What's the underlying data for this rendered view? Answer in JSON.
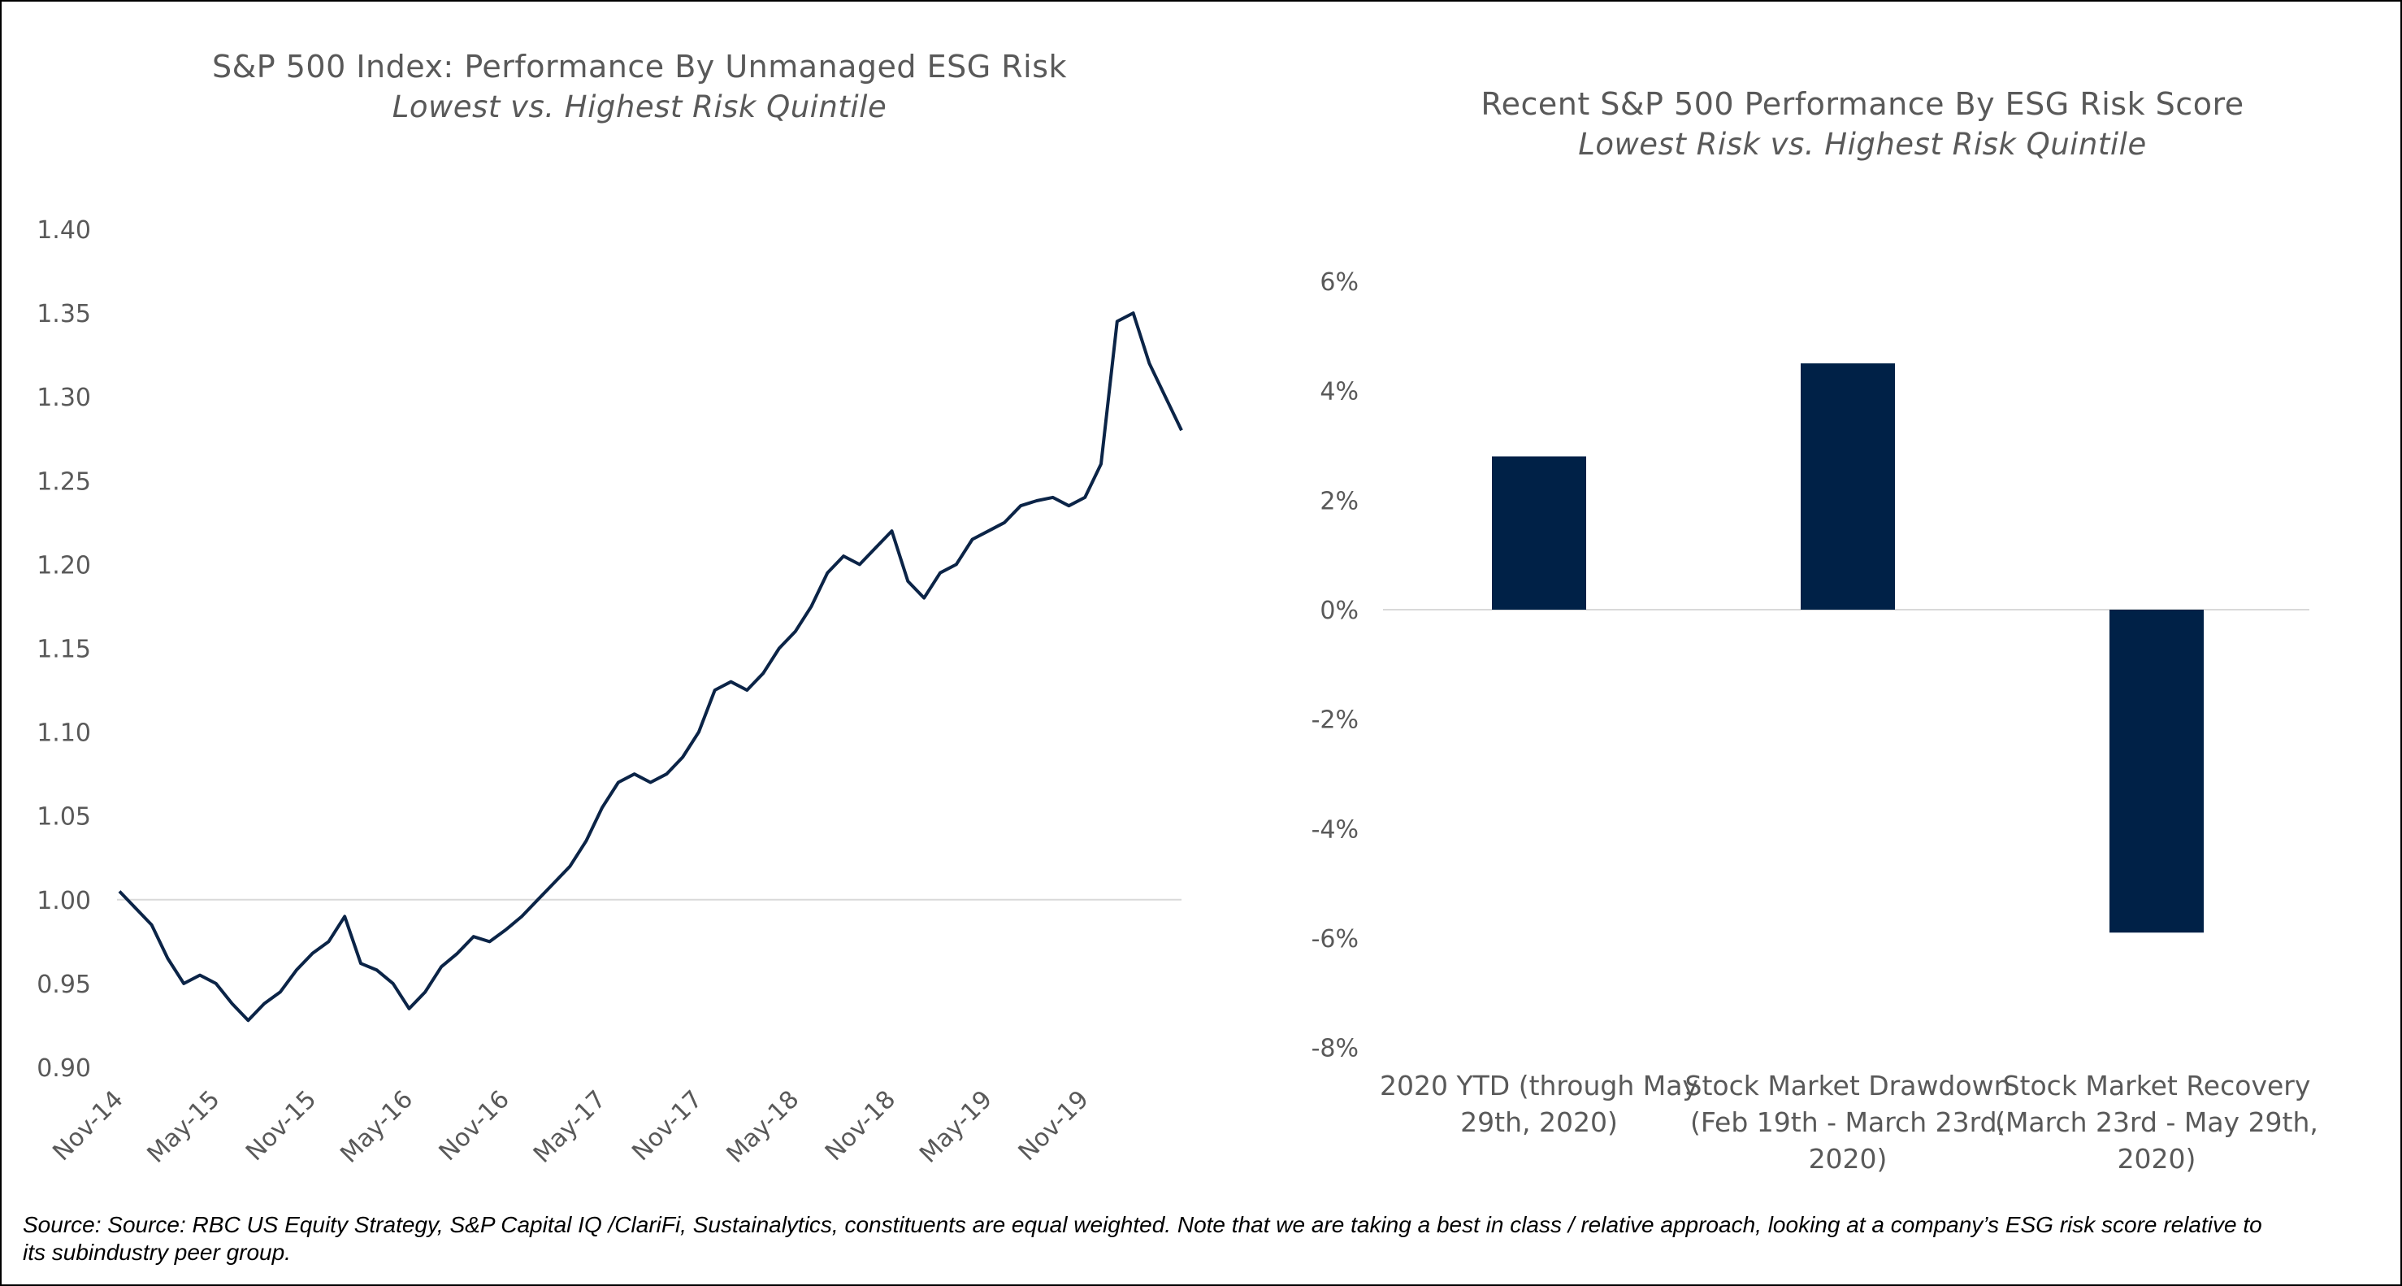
{
  "chart_data": [
    {
      "type": "line",
      "title": "S&P 500 Index:  Performance  By Unmanaged  ESG Risk",
      "subtitle": "Lowest vs. Highest Risk Quintile",
      "xlabel": "",
      "ylabel": "",
      "ylim": [
        0.9,
        1.4
      ],
      "yticks": [
        "0.90",
        "0.95",
        "1.00",
        "1.05",
        "1.10",
        "1.15",
        "1.20",
        "1.25",
        "1.30",
        "1.35",
        "1.40"
      ],
      "xticks": [
        "Nov-14",
        "May-15",
        "Nov-15",
        "May-16",
        "Nov-16",
        "May-17",
        "Nov-17",
        "May-18",
        "Nov-18",
        "May-19",
        "Nov-19"
      ],
      "reference_line": 1.0,
      "grid": false,
      "legend": "none",
      "color": "#0b2447",
      "series": [
        {
          "x": [
            "Nov-14",
            "Dec-14",
            "Jan-15",
            "Feb-15",
            "Mar-15",
            "Apr-15",
            "May-15",
            "Jun-15",
            "Jul-15",
            "Aug-15",
            "Sep-15",
            "Oct-15",
            "Nov-15",
            "Dec-15",
            "Jan-16",
            "Feb-16",
            "Mar-16",
            "Apr-16",
            "May-16",
            "Jun-16",
            "Jul-16",
            "Aug-16",
            "Sep-16",
            "Oct-16",
            "Nov-16",
            "Dec-16",
            "Jan-17",
            "Feb-17",
            "Mar-17",
            "Apr-17",
            "May-17",
            "Jun-17",
            "Jul-17",
            "Aug-17",
            "Sep-17",
            "Oct-17",
            "Nov-17",
            "Dec-17",
            "Jan-18",
            "Feb-18",
            "Mar-18",
            "Apr-18",
            "May-18",
            "Jun-18",
            "Jul-18",
            "Aug-18",
            "Sep-18",
            "Oct-18",
            "Nov-18",
            "Dec-18",
            "Jan-19",
            "Feb-19",
            "Mar-19",
            "Apr-19",
            "May-19",
            "Jun-19",
            "Jul-19",
            "Aug-19",
            "Sep-19",
            "Oct-19",
            "Nov-19",
            "Dec-19",
            "Jan-20",
            "Feb-20",
            "Mar-20",
            "Apr-20",
            "May-20"
          ],
          "values": [
            1.005,
            0.995,
            0.985,
            0.965,
            0.95,
            0.955,
            0.95,
            0.938,
            0.928,
            0.938,
            0.945,
            0.958,
            0.968,
            0.975,
            0.99,
            0.962,
            0.958,
            0.95,
            0.935,
            0.945,
            0.96,
            0.968,
            0.978,
            0.975,
            0.982,
            0.99,
            1.0,
            1.01,
            1.02,
            1.035,
            1.055,
            1.07,
            1.075,
            1.07,
            1.075,
            1.085,
            1.1,
            1.125,
            1.13,
            1.125,
            1.135,
            1.15,
            1.16,
            1.175,
            1.195,
            1.205,
            1.2,
            1.21,
            1.22,
            1.19,
            1.18,
            1.195,
            1.2,
            1.215,
            1.22,
            1.225,
            1.235,
            1.238,
            1.24,
            1.235,
            1.24,
            1.26,
            1.345,
            1.35,
            1.32,
            1.3,
            1.28
          ]
        }
      ]
    },
    {
      "type": "bar",
      "title": "Recent S&P 500 Performance  By ESG Risk Score",
      "subtitle": "Lowest Risk vs. Highest Risk Quintile",
      "xlabel": "",
      "ylabel": "",
      "ylim": [
        -0.08,
        0.06
      ],
      "yticks": [
        "6%",
        "4%",
        "2%",
        "0%",
        "-2%",
        "-4%",
        "-6%",
        "-8%"
      ],
      "categories": [
        [
          "2020 YTD (through May",
          "29th, 2020)"
        ],
        [
          "Stock Market Drawdown",
          "(Feb 19th - March 23rd,",
          "2020)"
        ],
        [
          "Stock Market Recovery",
          "(March 23rd - May 29th,",
          "2020)"
        ]
      ],
      "values": [
        0.028,
        0.045,
        -0.059
      ],
      "grid": false,
      "legend": "none",
      "color": "#002147"
    }
  ],
  "footnote": {
    "line1": "Source: Source: RBC US Equity Strategy, S&P Capital IQ /ClariFi, Sustainalytics, constituents are equal weighted. Note that we are taking a best in class / relative approach, looking at a company’s ESG risk score relative to",
    "line2": "its subindustry peer group."
  }
}
